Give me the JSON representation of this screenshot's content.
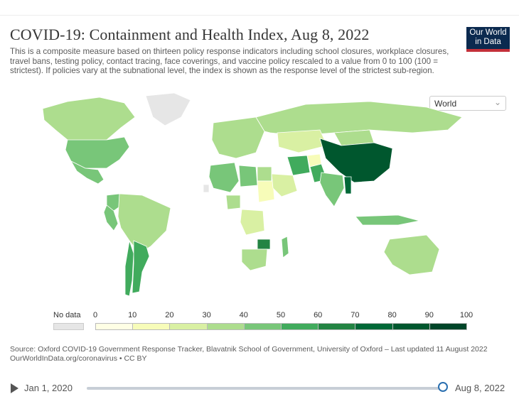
{
  "header": {
    "title": "COVID-19: Containment and Health Index, Aug 8, 2022",
    "subtitle": "This is a composite measure based on thirteen policy response indicators including school closures, workplace closures, travel bans, testing policy, contact tracing, face coverings, and vaccine policy rescaled to a value from 0 to 100 (100 = strictest). If policies vary at the subnational level, the index is shown as the response level of the strictest sub-region.",
    "logo_line1": "Our World",
    "logo_line2": "in Data"
  },
  "region_select": {
    "value": "World",
    "icon": "chevron-down-icon"
  },
  "legend": {
    "no_data_label": "No data",
    "no_data_color": "#e6e6e6",
    "ticks": [
      "0",
      "10",
      "20",
      "30",
      "40",
      "50",
      "60",
      "70",
      "80",
      "90",
      "100"
    ],
    "colors": [
      "#ffffe5",
      "#f7fcb9",
      "#d9f0a3",
      "#addd8e",
      "#78c679",
      "#41ab5d",
      "#238443",
      "#006837",
      "#00572e",
      "#004529"
    ]
  },
  "map": {
    "projection": "robinson-like",
    "ocean_color": "#ffffff",
    "regions": [
      {
        "name": "China",
        "value": 86
      },
      {
        "name": "Myanmar",
        "value": 70
      },
      {
        "name": "United States",
        "value": 48
      },
      {
        "name": "Canada",
        "value": 38
      },
      {
        "name": "Greenland",
        "value": null
      },
      {
        "name": "Mexico",
        "value": 45
      },
      {
        "name": "Brazil",
        "value": 30
      },
      {
        "name": "Argentina",
        "value": 58
      },
      {
        "name": "Chile",
        "value": 55
      },
      {
        "name": "Peru",
        "value": 45
      },
      {
        "name": "Colombia",
        "value": 45
      },
      {
        "name": "Russia",
        "value": 30
      },
      {
        "name": "Kazakhstan",
        "value": 22
      },
      {
        "name": "Mongolia",
        "value": 35
      },
      {
        "name": "India",
        "value": 45
      },
      {
        "name": "Pakistan",
        "value": 55
      },
      {
        "name": "Iran",
        "value": 55
      },
      {
        "name": "Afghanistan",
        "value": 12
      },
      {
        "name": "Saudi Arabia",
        "value": 28
      },
      {
        "name": "Australia",
        "value": 30
      },
      {
        "name": "Indonesia",
        "value": 48
      },
      {
        "name": "Algeria",
        "value": 42
      },
      {
        "name": "Libya",
        "value": 42
      },
      {
        "name": "Sudan",
        "value": 12
      },
      {
        "name": "Egypt",
        "value": 35
      },
      {
        "name": "Nigeria",
        "value": 35
      },
      {
        "name": "DR Congo",
        "value": 25
      },
      {
        "name": "Madagascar",
        "value": 48
      },
      {
        "name": "South Africa",
        "value": 35
      },
      {
        "name": "Zimbabwe",
        "value": 62
      },
      {
        "name": "Western Sahara",
        "value": null
      },
      {
        "name": "Europe",
        "value": 30
      }
    ]
  },
  "source": {
    "line": "Source: Oxford COVID-19 Government Response Tracker, Blavatnik School of Government, University of Oxford – Last updated 11 August 2022",
    "url": "OurWorldInData.org/coronavirus • CC BY"
  },
  "timeline": {
    "start_label": "Jan 1, 2020",
    "end_label": "Aug 8, 2022",
    "position": 1.0
  }
}
